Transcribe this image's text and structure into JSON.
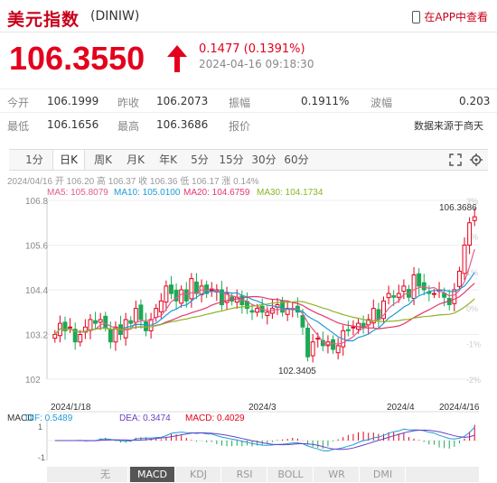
{
  "header": {
    "title": "美元指数",
    "code": "(DINIW)",
    "app_link": "在APP中查看"
  },
  "quote": {
    "price": "106.3550",
    "change": "0.1477 (0.1391%)",
    "time": "2024-04-16 09:18:30",
    "color": "#e4001c"
  },
  "stats": {
    "row1": [
      {
        "label": "今开",
        "value": "106.1999"
      },
      {
        "label": "昨收",
        "value": "106.2073"
      },
      {
        "label": "振幅",
        "value": "0.1911%"
      },
      {
        "label": "波幅",
        "value": "0.203"
      }
    ],
    "row2": [
      {
        "label": "最低",
        "value": "106.1656"
      },
      {
        "label": "最高",
        "value": "106.3686"
      },
      {
        "label": "报价",
        "value": ""
      },
      {
        "label": "",
        "value": "数据来源于商天"
      }
    ]
  },
  "chart_tabs": [
    "1分",
    "日K",
    "周K",
    "月K",
    "年K",
    "5分",
    "15分",
    "30分",
    "60分"
  ],
  "active_tab": "日K",
  "ohlc_line": "2024/04/16 开 106.20 高 106.37 收 106.36 低 106.17 涨 0.14%",
  "ma_line": {
    "ma5": "MA5: 105.8079",
    "ma10": "MA10: 105.0100",
    "ma20": "MA20: 104.6759",
    "ma30": "MA30: 104.1734"
  },
  "ma_colors": {
    "ma5": "#e35b8f",
    "ma10": "#1e9bd7",
    "ma20": "#e6356f",
    "ma30": "#8ab626"
  },
  "chart_data": {
    "type": "candlestick",
    "y_ticks": [
      "106.8",
      "105.6",
      "104.4",
      "103.2",
      "102"
    ],
    "right_ticks": [
      "3%",
      "2%",
      "1%",
      "0%",
      "-1%",
      "-2%"
    ],
    "x_labels": [
      "2024/1/18",
      "2024/3",
      "2024/4",
      "2024/4/16"
    ],
    "annotations": {
      "high": "106.3686",
      "low": "102.3405"
    },
    "ylim": [
      102,
      106.8
    ],
    "closes": [
      103.2,
      103.5,
      103.3,
      103.4,
      103.0,
      103.2,
      103.4,
      103.6,
      103.5,
      103.6,
      103.4,
      103.0,
      103.4,
      103.2,
      103.6,
      103.5,
      103.9,
      103.6,
      103.3,
      103.6,
      103.9,
      104.1,
      104.5,
      104.3,
      104.1,
      104.4,
      104.1,
      104.7,
      104.3,
      104.5,
      104.3,
      104.4,
      104.4,
      104.0,
      104.3,
      104.1,
      104.2,
      104.0,
      103.9,
      103.8,
      103.9,
      103.8,
      103.8,
      103.9,
      104.0,
      103.8,
      103.9,
      103.9,
      103.8,
      103.4,
      102.6,
      103.0,
      103.1,
      102.9,
      103.0,
      102.8,
      102.9,
      103.3,
      103.3,
      103.4,
      103.5,
      103.4,
      103.6,
      103.9,
      103.6,
      104.1,
      104.3,
      104.2,
      104.3,
      104.5,
      104.2,
      104.8,
      104.5,
      104.4,
      104.3,
      104.3,
      104.4,
      104.2,
      104.0,
      104.4,
      104.9,
      105.6,
      106.2,
      106.36
    ],
    "bottom": {
      "label": "MACD",
      "dif": "DIF: 0.5489",
      "dea": "DEA: 0.3474",
      "macd": "MACD: 0.4029",
      "y_ticks": [
        "1",
        "-1"
      ]
    }
  },
  "indicator_tabs": [
    "无",
    "MACD",
    "KDJ",
    "RSI",
    "BOLL",
    "WR",
    "DMI"
  ],
  "active_indicator": "MACD"
}
